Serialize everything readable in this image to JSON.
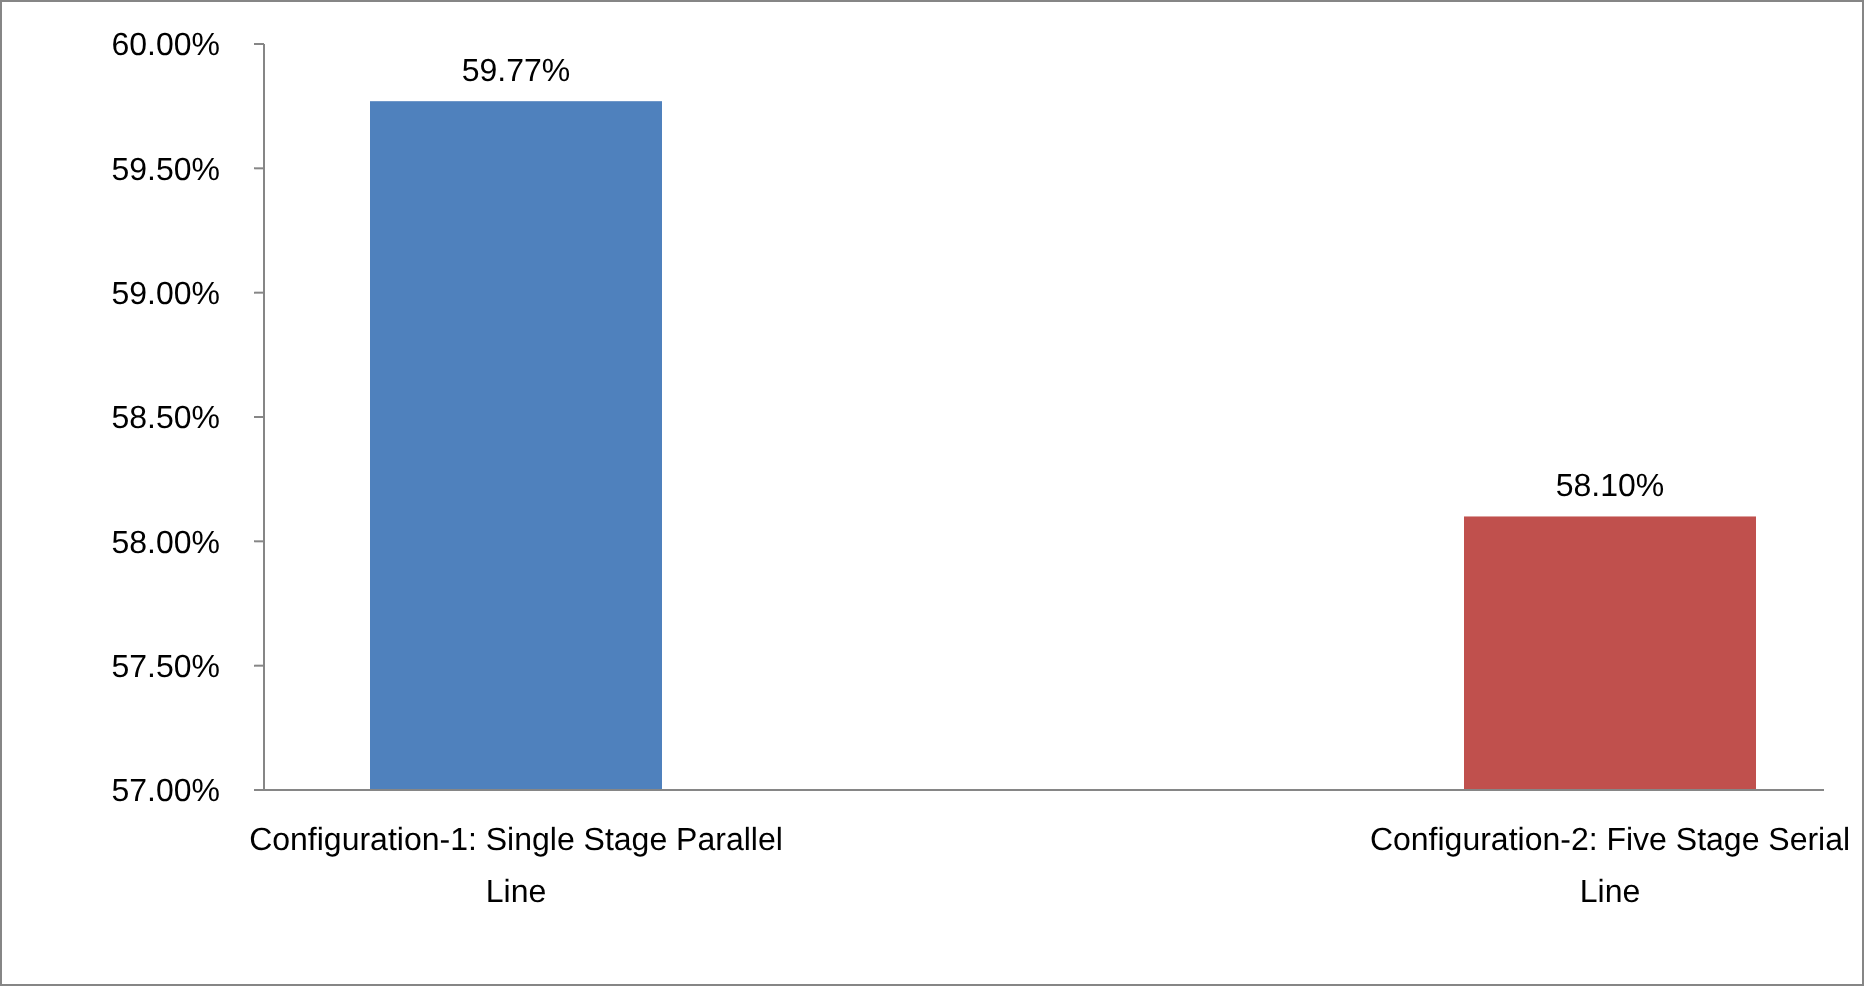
{
  "chart_data": {
    "type": "bar",
    "categories": [
      "Configuration-1: Single Stage Parallel Line",
      "Configuration-2: Five Stage Serial Line"
    ],
    "values": [
      59.77,
      58.1
    ],
    "colors": [
      "#4f81bd",
      "#c0504d"
    ],
    "value_labels": [
      "59.77%",
      "58.10%"
    ],
    "ylim": [
      57,
      60
    ],
    "yticks": [
      {
        "value": 57,
        "label": "57.00%"
      },
      {
        "value": 57.5,
        "label": "57.50%"
      },
      {
        "value": 58,
        "label": "58.00%"
      },
      {
        "value": 58.5,
        "label": "58.50%"
      },
      {
        "value": 59,
        "label": "59.00%"
      },
      {
        "value": 59.5,
        "label": "59.50%"
      },
      {
        "value": 60,
        "label": "60.00%"
      }
    ],
    "grid": false
  }
}
